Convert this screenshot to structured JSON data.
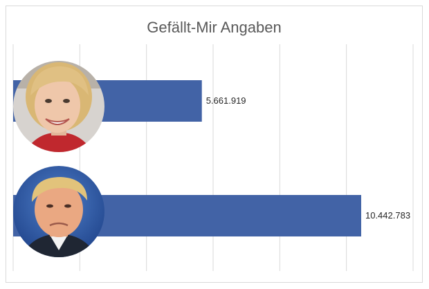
{
  "chart_data": {
    "type": "bar",
    "orientation": "horizontal",
    "title": "Gefällt-Mir Angaben",
    "categories": [
      "Hillary Clinton",
      "Donald Trump"
    ],
    "values": [
      5661919,
      10442783
    ],
    "value_labels": [
      "5.661.919",
      "10.442.783"
    ],
    "xlim": [
      0,
      12000000
    ],
    "grid": true,
    "legend": "none",
    "bar_color": "#4263a6",
    "category_images": [
      "hillary-clinton-portrait",
      "donald-trump-portrait"
    ]
  }
}
